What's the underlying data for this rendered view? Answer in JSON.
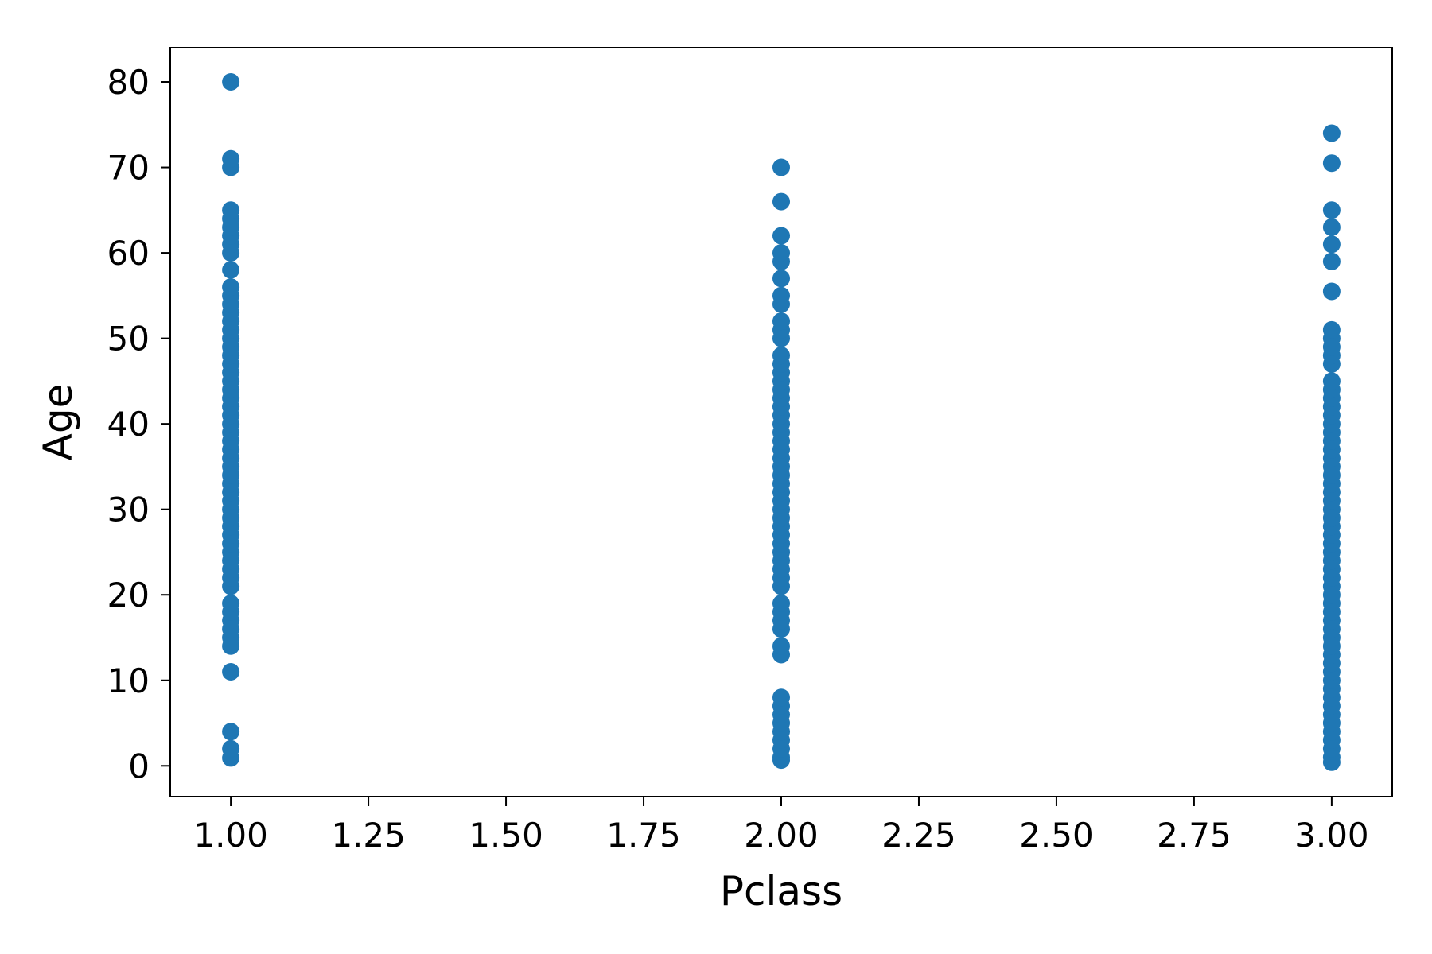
{
  "colors": {
    "point": "#1f77b4",
    "axis": "#000000",
    "background": "#ffffff"
  },
  "chart_data": {
    "type": "scatter",
    "title": "",
    "xlabel": "Pclass",
    "ylabel": "Age",
    "xlim": [
      0.89,
      3.11
    ],
    "ylim": [
      -3.6,
      84
    ],
    "xticks": [
      1.0,
      1.25,
      1.5,
      1.75,
      2.0,
      2.25,
      2.5,
      2.75,
      3.0
    ],
    "xtick_labels": [
      "1.00",
      "1.25",
      "1.50",
      "1.75",
      "2.00",
      "2.25",
      "2.50",
      "2.75",
      "3.00"
    ],
    "yticks": [
      0,
      10,
      20,
      30,
      40,
      50,
      60,
      70,
      80
    ],
    "ytick_labels": [
      "0",
      "10",
      "20",
      "30",
      "40",
      "50",
      "60",
      "70",
      "80"
    ],
    "grid": false,
    "legend": "none",
    "series": [
      {
        "x_value": 1,
        "ages": [
          0.92,
          2,
          4,
          11,
          14,
          15,
          16,
          17,
          18,
          19,
          21,
          22,
          23,
          24,
          25,
          26,
          27,
          28,
          29,
          30,
          31,
          32,
          33,
          34,
          35,
          36,
          37,
          38,
          39,
          40,
          41,
          42,
          43,
          44,
          45,
          46,
          47,
          48,
          49,
          50,
          51,
          52,
          53,
          54,
          55,
          56,
          58,
          60,
          61,
          62,
          63,
          64,
          65,
          70,
          71,
          80
        ]
      },
      {
        "x_value": 2,
        "ages": [
          0.67,
          1,
          2,
          3,
          4,
          5,
          6,
          7,
          8,
          13,
          14,
          16,
          17,
          18,
          19,
          21,
          22,
          23,
          24,
          25,
          26,
          27,
          28,
          29,
          30,
          31,
          32,
          33,
          34,
          35,
          36,
          37,
          38,
          39,
          40,
          41,
          42,
          43,
          44,
          45,
          46,
          47,
          48,
          50,
          51,
          52,
          54,
          55,
          57,
          59,
          60,
          62,
          66,
          70
        ]
      },
      {
        "x_value": 3,
        "ages": [
          0.42,
          1,
          2,
          3,
          4,
          5,
          6,
          7,
          8,
          9,
          10,
          11,
          12,
          13,
          14,
          15,
          16,
          17,
          18,
          19,
          20,
          21,
          22,
          23,
          24,
          25,
          26,
          27,
          28,
          29,
          30,
          31,
          32,
          33,
          34,
          35,
          36,
          37,
          38,
          39,
          40,
          41,
          42,
          43,
          44,
          45,
          47,
          48,
          49,
          50,
          51,
          55.5,
          59,
          61,
          63,
          65,
          70.5,
          74
        ]
      }
    ]
  }
}
